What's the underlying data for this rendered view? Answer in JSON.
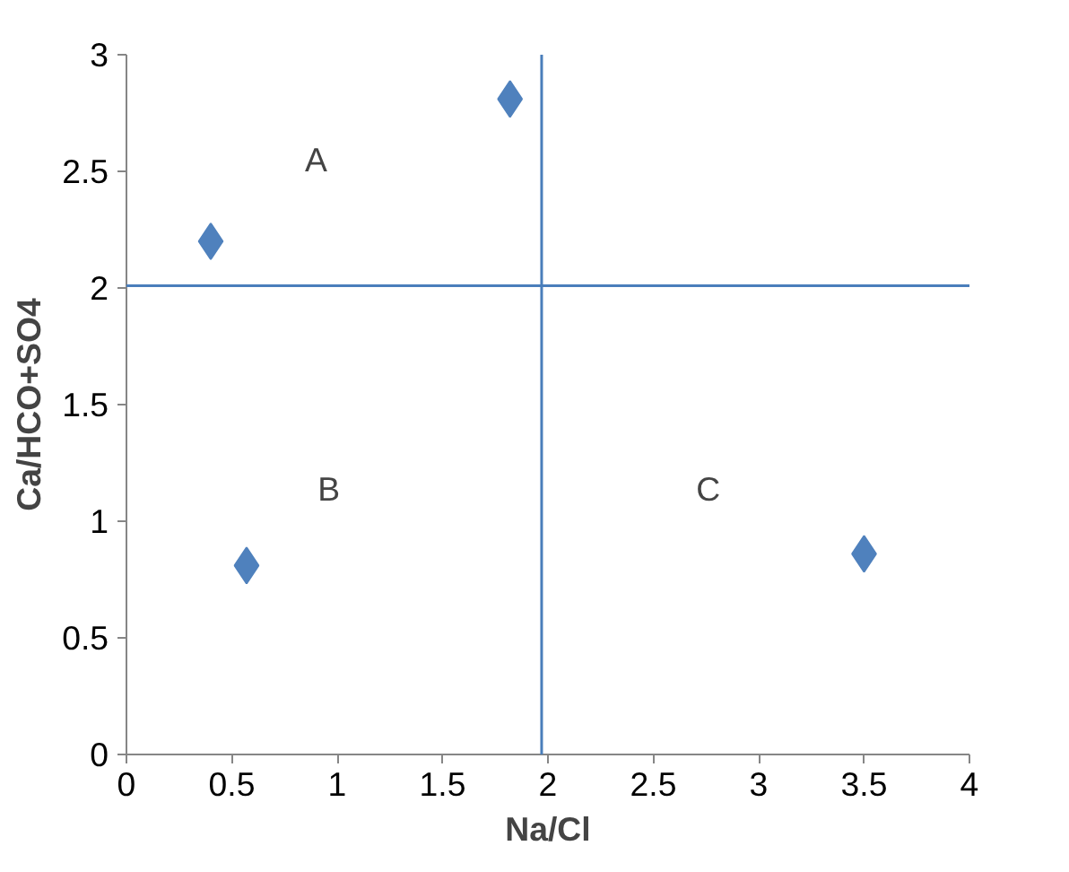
{
  "chart_data": {
    "type": "scatter",
    "xlabel": "Na/Cl",
    "ylabel": "Ca/HCO+SO4",
    "x": [
      0.4,
      1.82,
      0.57,
      3.5
    ],
    "values": [
      2.2,
      2.81,
      0.81,
      0.86
    ],
    "color": "#4f81bd",
    "marker": "diamond",
    "xlim": [
      0,
      4
    ],
    "xticks": [
      0,
      0.5,
      1,
      1.5,
      2,
      2.5,
      3,
      3.5,
      4
    ],
    "ylim": [
      0,
      3
    ],
    "yticks": [
      0,
      0.5,
      1,
      1.5,
      2,
      2.5,
      3
    ],
    "grid": false,
    "ref_lines": [
      {
        "axis": "x",
        "value": 1.97,
        "color": "#4a7ebb"
      },
      {
        "axis": "y",
        "value": 2.01,
        "color": "#4a7ebb"
      }
    ],
    "annotations": [
      "A",
      "B",
      "C"
    ]
  }
}
